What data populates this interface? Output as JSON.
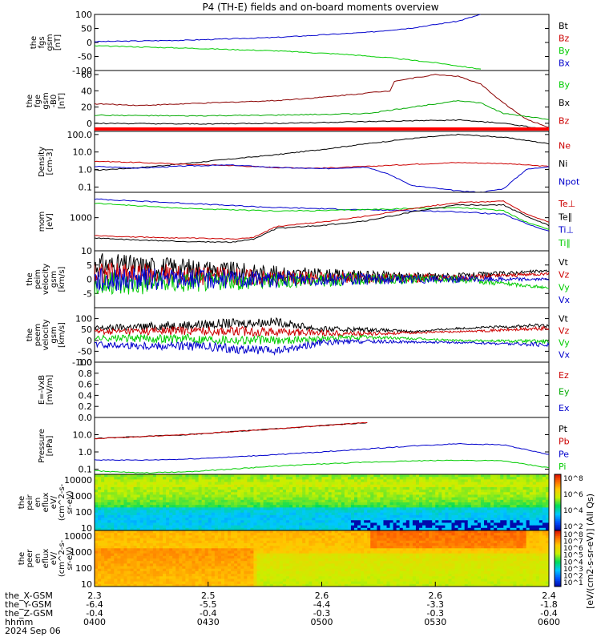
{
  "title": "P4 (TH-E) fields and on-board moments overview",
  "footer_labels": [
    "the_X-GSM",
    "the_Y-GSM",
    "the_Z-GSM",
    "hhmm",
    "2024 Sep 06"
  ],
  "xaxis": {
    "ticks": [
      {
        "time": "0400",
        "x": "2.3",
        "y": "-6.4",
        "z": "-0.4"
      },
      {
        "time": "0430",
        "x": "2.5",
        "y": "-5.5",
        "z": "-0.4"
      },
      {
        "time": "0500",
        "x": "2.6",
        "y": "-4.4",
        "z": "-0.3"
      },
      {
        "time": "0530",
        "x": "2.6",
        "y": "-3.3",
        "z": "-0.3"
      },
      {
        "time": "0600",
        "x": "2.4",
        "y": "-1.8",
        "z": "-0.4"
      }
    ]
  },
  "colorbars": {
    "labels_top": [
      "10^8",
      "10^7",
      "10^6",
      "10^5",
      "10^4",
      "10^3",
      "10^2",
      "10^1"
    ],
    "unit_label": "[eV/(cm2-s-sr-eV)] (All Qs)",
    "unit_label2": "[eV/(cm^2-s-sr-eV)]"
  },
  "chart_data": [
    {
      "type": "line",
      "panel": "fgs",
      "ylabel_lines": [
        "the",
        "fgs",
        "gsm",
        "[nT]"
      ],
      "ylim": [
        -100,
        100
      ],
      "yticks": [
        "100",
        "50",
        "0",
        "-50",
        "-100"
      ],
      "legend": [
        {
          "name": "Bt",
          "color": "#000000"
        },
        {
          "name": "Bz",
          "color": "#cc0000"
        },
        {
          "name": "By",
          "color": "#00cc00"
        },
        {
          "name": "Bx",
          "color": "#0000cc"
        }
      ],
      "series": [
        {
          "name": "Bx",
          "color": "#0000cc",
          "t": [
            0,
            0.2,
            0.4,
            0.6,
            0.7,
            0.8,
            0.85
          ],
          "values": [
            3,
            8,
            18,
            36,
            52,
            76,
            100
          ]
        },
        {
          "name": "By",
          "color": "#00cc00",
          "t": [
            0,
            0.2,
            0.4,
            0.55,
            0.65,
            0.75,
            0.85
          ],
          "values": [
            -12,
            -20,
            -30,
            -42,
            -55,
            -72,
            -95
          ]
        }
      ]
    },
    {
      "type": "line",
      "panel": "fgs2",
      "ylabel_lines": [
        "the",
        "fge",
        "gsm",
        "-B0",
        "[nT]"
      ],
      "ylim": [
        -10,
        65
      ],
      "yticks": [
        "60",
        "40",
        "20",
        "0"
      ],
      "legend": [
        {
          "name": "By",
          "color": "#00cc00"
        },
        {
          "name": "Bx",
          "color": "#000000"
        },
        {
          "name": "Bz",
          "color": "#cc0000"
        }
      ],
      "series": [
        {
          "name": "Bz",
          "color": "#8b0000",
          "t": [
            0,
            0.1,
            0.2,
            0.3,
            0.4,
            0.5,
            0.65,
            0.66,
            0.75,
            0.8,
            0.85,
            0.9,
            0.95,
            1
          ],
          "values": [
            24,
            22,
            24,
            26,
            28,
            32,
            40,
            52,
            60,
            58,
            48,
            25,
            5,
            -5
          ]
        },
        {
          "name": "By",
          "color": "#00aa00",
          "t": [
            0,
            0.2,
            0.4,
            0.6,
            0.7,
            0.8,
            0.85,
            0.9,
            1
          ],
          "values": [
            10,
            9,
            10,
            12,
            20,
            28,
            25,
            12,
            5
          ]
        },
        {
          "name": "Bx",
          "color": "#000000",
          "t": [
            0,
            0.2,
            0.4,
            0.6,
            0.8,
            0.9,
            1
          ],
          "values": [
            0,
            -1,
            0,
            2,
            4,
            0,
            -8
          ]
        }
      ]
    },
    {
      "type": "line",
      "panel": "density",
      "ylabel_lines": [
        "Density",
        "[cm-3]"
      ],
      "ylim": [
        0.05,
        150
      ],
      "scale": "log",
      "yticks": [
        "100.0",
        "10.0",
        "1.0",
        "0.1"
      ],
      "legend": [
        {
          "name": "Ne",
          "color": "#cc0000"
        },
        {
          "name": "Ni",
          "color": "#000000"
        },
        {
          "name": "Npot",
          "color": "#0000cc"
        }
      ],
      "series": [
        {
          "name": "Ni",
          "color": "#000000",
          "t": [
            0,
            0.1,
            0.2,
            0.3,
            0.4,
            0.5,
            0.6,
            0.7,
            0.8,
            0.9,
            1
          ],
          "values": [
            0.9,
            1.3,
            2.2,
            4,
            7,
            14,
            30,
            60,
            100,
            70,
            30
          ]
        },
        {
          "name": "Ne",
          "color": "#cc0000",
          "t": [
            0,
            0.1,
            0.2,
            0.3,
            0.4,
            0.5,
            0.6,
            0.7,
            0.8,
            0.9,
            1
          ],
          "values": [
            3,
            2.5,
            2,
            1.7,
            1.3,
            1.2,
            1.5,
            2,
            2.5,
            2.2,
            1.5
          ]
        },
        {
          "name": "Npot",
          "color": "#0000cc",
          "t": [
            0,
            0.1,
            0.2,
            0.3,
            0.4,
            0.5,
            0.6,
            0.65,
            0.7,
            0.8,
            0.85,
            0.9,
            0.95,
            1
          ],
          "values": [
            1.5,
            1.2,
            1.6,
            1.8,
            1.3,
            1.1,
            1.4,
            0.5,
            0.12,
            0.06,
            0.05,
            0.08,
            1.0,
            1.5
          ]
        }
      ]
    },
    {
      "type": "line",
      "panel": "temperature",
      "ylabel_lines": [
        "mom",
        "[eV]"
      ],
      "ylim": [
        20,
        20000
      ],
      "scale": "log",
      "yticks": [
        "1000"
      ],
      "legend": [
        {
          "name": "Te⊥",
          "color": "#cc0000"
        },
        {
          "name": "Te∥",
          "color": "#000000"
        },
        {
          "name": "Ti⊥",
          "color": "#0000cc"
        },
        {
          "name": "Ti∥",
          "color": "#00cc00"
        }
      ],
      "series": [
        {
          "name": "Ti⊥",
          "color": "#0000cc",
          "t": [
            0,
            0.1,
            0.2,
            0.3,
            0.4,
            0.5,
            0.6,
            0.7,
            0.8,
            0.9,
            0.95,
            1
          ],
          "values": [
            9000,
            7000,
            5500,
            4200,
            3300,
            2900,
            2500,
            2300,
            2000,
            1500,
            500,
            200
          ]
        },
        {
          "name": "Ti∥",
          "color": "#00cc00",
          "t": [
            0,
            0.1,
            0.2,
            0.3,
            0.4,
            0.5,
            0.6,
            0.7,
            0.8,
            0.9,
            0.95,
            1
          ],
          "values": [
            5500,
            4000,
            3000,
            2500,
            2200,
            2300,
            2600,
            3000,
            3300,
            2300,
            600,
            250
          ]
        },
        {
          "name": "Te⊥",
          "color": "#cc0000",
          "t": [
            0,
            0.1,
            0.2,
            0.3,
            0.35,
            0.4,
            0.5,
            0.6,
            0.7,
            0.8,
            0.9,
            0.95,
            1
          ],
          "values": [
            120,
            100,
            90,
            80,
            100,
            350,
            600,
            1200,
            3000,
            6000,
            7000,
            1500,
            600
          ]
        },
        {
          "name": "Te∥",
          "color": "#000000",
          "t": [
            0,
            0.1,
            0.2,
            0.3,
            0.35,
            0.4,
            0.5,
            0.6,
            0.7,
            0.8,
            0.9,
            0.95,
            1
          ],
          "values": [
            90,
            70,
            60,
            55,
            80,
            280,
            400,
            700,
            2000,
            4500,
            4500,
            1200,
            400
          ]
        }
      ]
    },
    {
      "type": "line",
      "panel": "peim_velocity",
      "ylabel_lines": [
        "the",
        "peim",
        "velocity",
        "gsm",
        "[km/s]"
      ],
      "ylim": [
        -10,
        10
      ],
      "yticks": [
        "10",
        "5",
        "0",
        "-5"
      ],
      "legend": [
        {
          "name": "Vt",
          "color": "#000000"
        },
        {
          "name": "Vz",
          "color": "#cc0000"
        },
        {
          "name": "Vy",
          "color": "#00cc00"
        },
        {
          "name": "Vx",
          "color": "#0000cc"
        }
      ],
      "series": [
        {
          "name": "Vt",
          "color": "#000000",
          "t": [
            0,
            0.2,
            0.4,
            0.6,
            0.8,
            1
          ],
          "values": [
            5,
            4,
            2,
            1,
            1,
            3
          ]
        },
        {
          "name": "Vz",
          "color": "#cc0000",
          "t": [
            0,
            0.2,
            0.4,
            0.6,
            0.8,
            1
          ],
          "values": [
            2,
            1.5,
            0.5,
            0.5,
            0.5,
            2
          ]
        },
        {
          "name": "Vy",
          "color": "#00cc00",
          "t": [
            0,
            0.2,
            0.4,
            0.6,
            0.8,
            1
          ],
          "values": [
            -2,
            -1,
            -0.5,
            0,
            0,
            -3
          ]
        },
        {
          "name": "Vx",
          "color": "#0000cc",
          "t": [
            0,
            0.2,
            0.4,
            0.6,
            0.8,
            1
          ],
          "values": [
            0,
            0,
            0,
            0,
            0,
            0
          ]
        }
      ]
    },
    {
      "type": "line",
      "panel": "peem_velocity",
      "ylabel_lines": [
        "the",
        "peem",
        "velocity",
        "gsm",
        "[km/s]"
      ],
      "ylim": [
        -100,
        150
      ],
      "yticks": [
        "100",
        "50",
        "0",
        "-50",
        "-100"
      ],
      "legend": [
        {
          "name": "Vt",
          "color": "#000000"
        },
        {
          "name": "Vz",
          "color": "#cc0000"
        },
        {
          "name": "Vy",
          "color": "#00cc00"
        },
        {
          "name": "Vx",
          "color": "#0000cc"
        }
      ],
      "series": [
        {
          "name": "Vt",
          "color": "#000000",
          "t": [
            0,
            0.2,
            0.4,
            0.5,
            0.6,
            0.7,
            0.8,
            1
          ],
          "values": [
            55,
            70,
            85,
            50,
            50,
            40,
            55,
            70
          ]
        },
        {
          "name": "Vz",
          "color": "#cc0000",
          "t": [
            0,
            0.2,
            0.4,
            0.6,
            0.8,
            1
          ],
          "values": [
            40,
            45,
            40,
            30,
            40,
            55
          ]
        },
        {
          "name": "Vy",
          "color": "#00cc00",
          "t": [
            0,
            0.2,
            0.4,
            0.6,
            0.8,
            1
          ],
          "values": [
            10,
            8,
            0,
            15,
            0,
            -5
          ]
        },
        {
          "name": "Vx",
          "color": "#0000cc",
          "t": [
            0,
            0.2,
            0.4,
            0.5,
            0.6,
            0.8,
            1
          ],
          "values": [
            -20,
            -25,
            -50,
            -10,
            -5,
            -10,
            -20
          ]
        }
      ]
    },
    {
      "type": "line",
      "panel": "efield",
      "ylabel_lines": [
        "E=-VxB",
        "[mV/m]"
      ],
      "ylim": [
        0,
        1
      ],
      "yticks": [
        "1.0",
        "0.8",
        "0.6",
        "0.4",
        "0.2",
        "0.0"
      ],
      "legend": [
        {
          "name": "Ez",
          "color": "#cc0000"
        },
        {
          "name": "Ey",
          "color": "#00aa00"
        },
        {
          "name": "Ex",
          "color": "#0000cc"
        }
      ],
      "series": []
    },
    {
      "type": "line",
      "panel": "pressure",
      "ylabel_lines": [
        "Pressure",
        "[nPa]"
      ],
      "ylim": [
        0.05,
        100
      ],
      "scale": "log",
      "yticks": [
        "10.0",
        "1.0",
        "0.1"
      ],
      "legend": [
        {
          "name": "Pt",
          "color": "#000000"
        },
        {
          "name": "Pb",
          "color": "#cc0000"
        },
        {
          "name": "Pe",
          "color": "#0000cc"
        },
        {
          "name": "Pi",
          "color": "#00cc00"
        }
      ],
      "series": [
        {
          "name": "Pt",
          "color": "#000000",
          "t": [
            0,
            0.2,
            0.4,
            0.6
          ],
          "values": [
            6,
            10,
            22,
            50
          ]
        },
        {
          "name": "Pb",
          "color": "#cc0000",
          "t": [
            0,
            0.2,
            0.4,
            0.6
          ],
          "values": [
            6,
            10,
            22,
            50
          ]
        },
        {
          "name": "Pe",
          "color": "#0000cc",
          "t": [
            0,
            0.1,
            0.2,
            0.3,
            0.4,
            0.5,
            0.6,
            0.7,
            0.8,
            0.9,
            1
          ],
          "values": [
            0.35,
            0.33,
            0.38,
            0.5,
            0.7,
            1,
            1.5,
            2.2,
            3,
            2.6,
            0.7
          ]
        },
        {
          "name": "Pi",
          "color": "#00cc00",
          "t": [
            0,
            0.1,
            0.2,
            0.3,
            0.4,
            0.5,
            0.6,
            0.7,
            0.8,
            0.9,
            1
          ],
          "values": [
            0.08,
            0.06,
            0.07,
            0.1,
            0.15,
            0.2,
            0.25,
            0.3,
            0.33,
            0.3,
            0.12
          ]
        }
      ]
    },
    {
      "type": "heatmap",
      "panel": "peir",
      "ylabel_lines": [
        "the",
        "peir",
        "en",
        "eflux",
        "eV/",
        "(cm^2-s-",
        "sr-eV)"
      ],
      "scale": "log",
      "yticks": [
        "10000",
        "1000",
        "100",
        "10"
      ],
      "colormap": "rainbow"
    },
    {
      "type": "heatmap",
      "panel": "peer",
      "ylabel_lines": [
        "the",
        "peer",
        "en",
        "eflux",
        "eV/",
        "(cm^2-s-",
        "sr-eV)"
      ],
      "scale": "log",
      "yticks": [
        "10000",
        "1000",
        "100",
        "10"
      ],
      "colormap": "rainbow"
    }
  ]
}
